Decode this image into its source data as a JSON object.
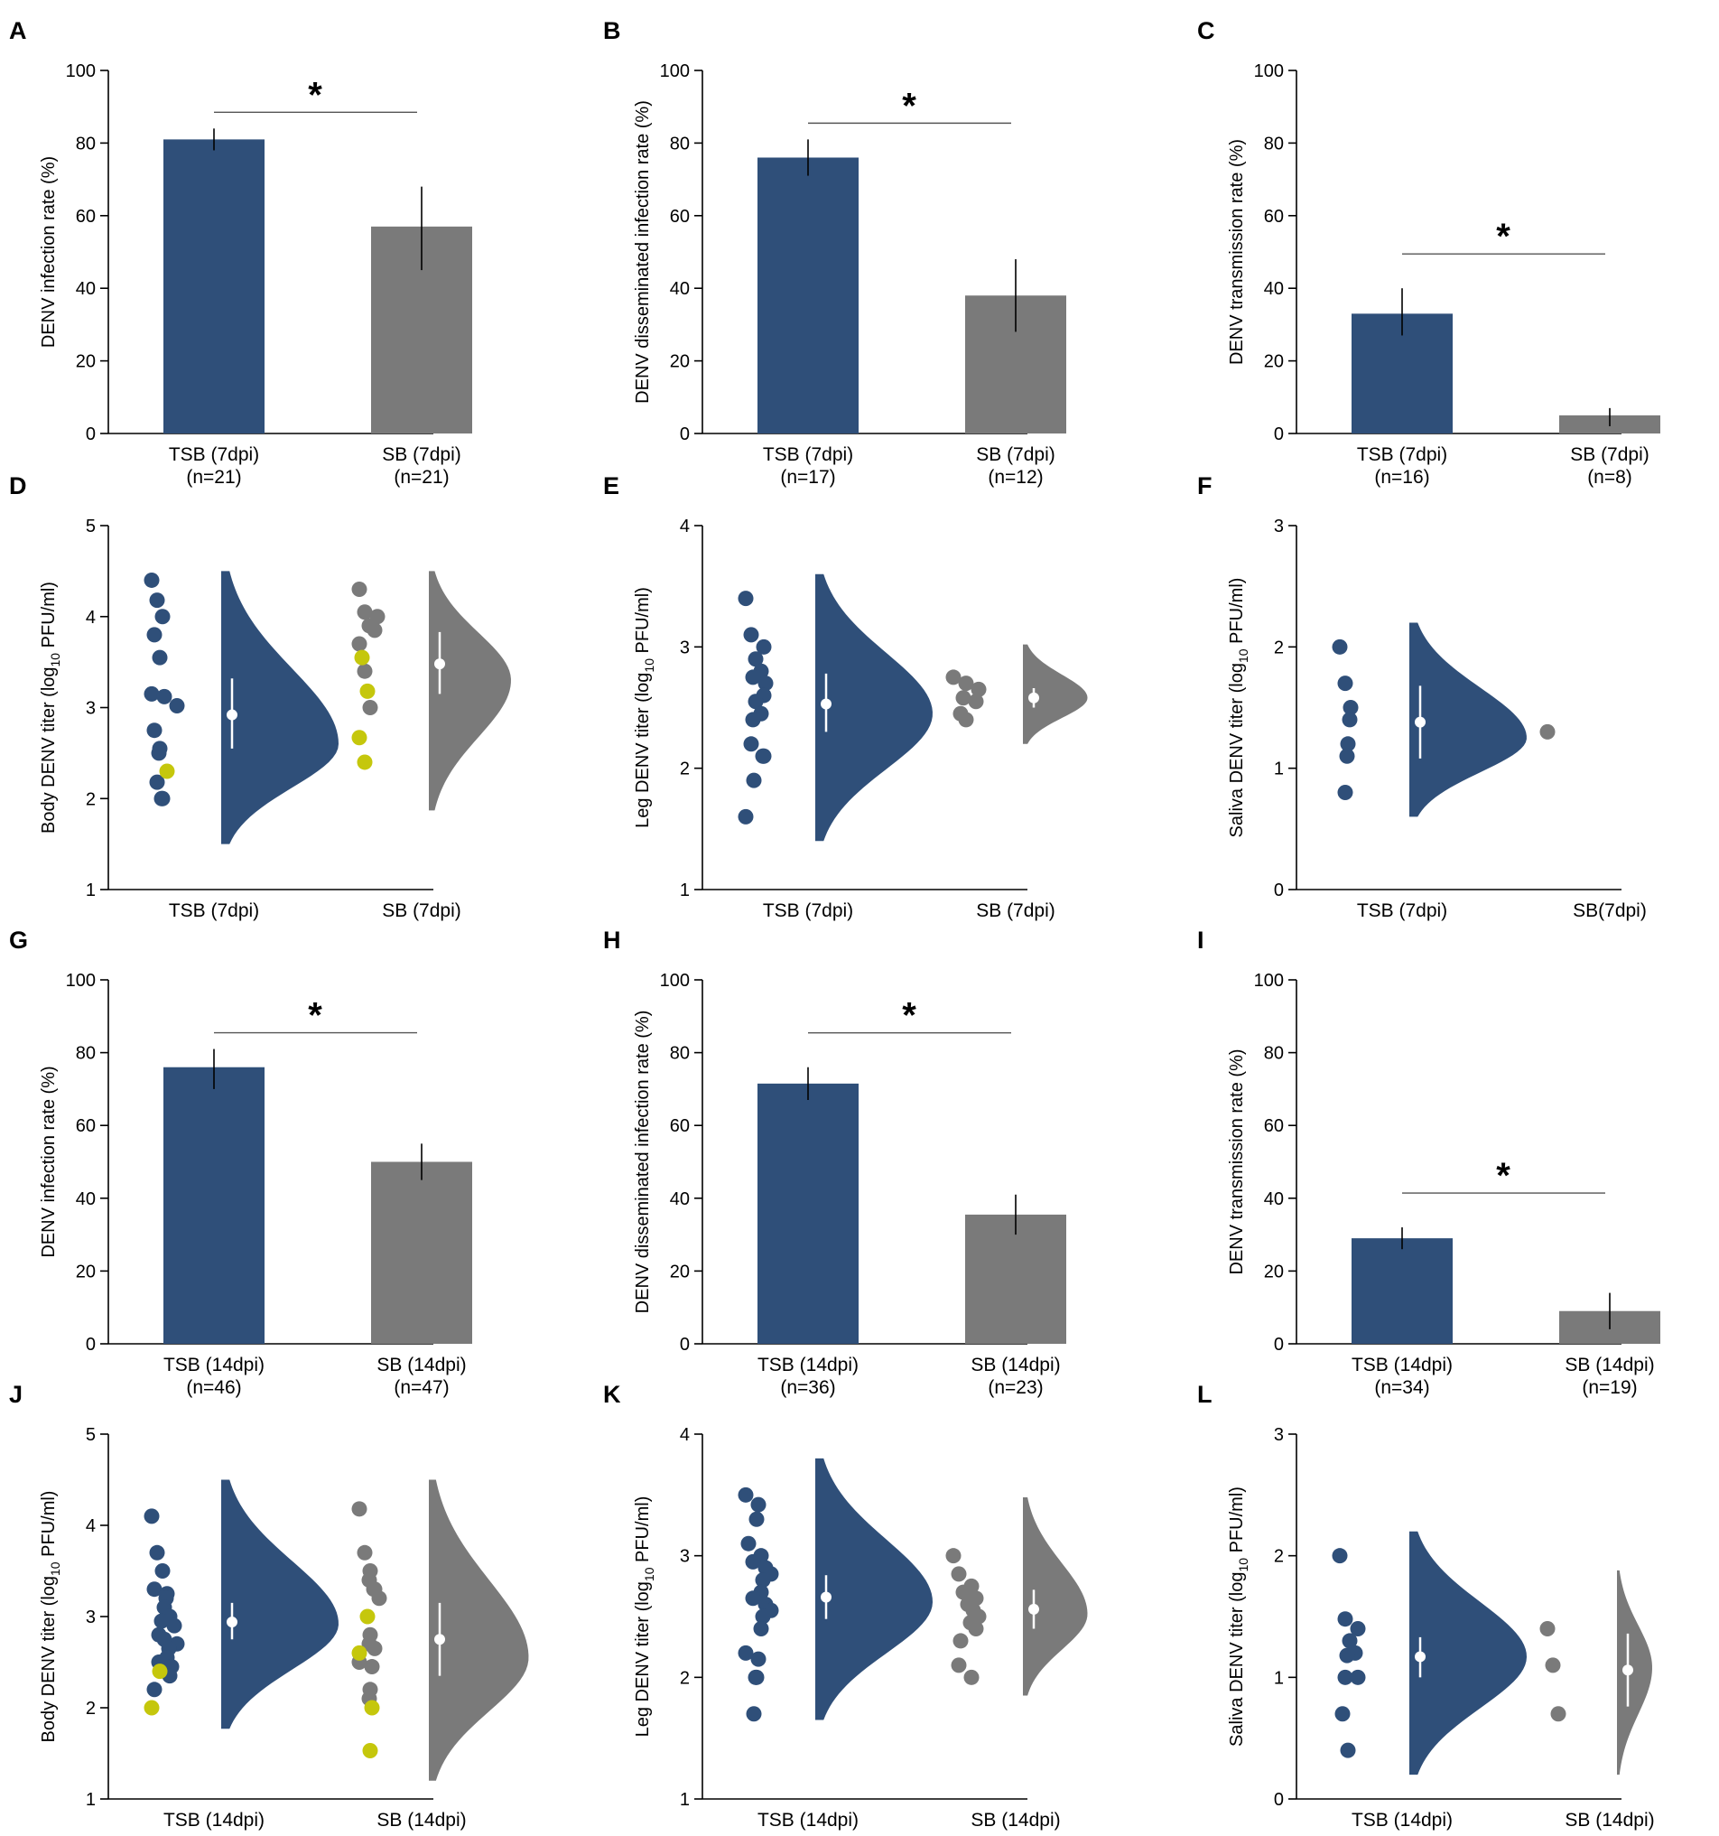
{
  "colors": {
    "tsb": "#2f4f79",
    "sb": "#7a7a7a",
    "yellow": "#c5c70c",
    "axis": "#000000",
    "median": "#ffffff"
  },
  "chart_data": [
    {
      "panel": "A",
      "type": "bar",
      "ylabel": "DENV infection rate (%)",
      "ylim": [
        0,
        100
      ],
      "yticks": [
        0,
        20,
        40,
        60,
        80,
        100
      ],
      "categories": [
        "TSB (7dpi)",
        "SB (7dpi)"
      ],
      "subcategories": [
        "(n=21)",
        "(n=21)"
      ],
      "values": [
        81,
        57
      ],
      "err_low": [
        78,
        45
      ],
      "err_high": [
        84,
        68
      ],
      "significance": "*"
    },
    {
      "panel": "B",
      "type": "bar",
      "ylabel": "DENV disseminated infection rate (%)",
      "ylim": [
        0,
        100
      ],
      "yticks": [
        0,
        20,
        40,
        60,
        80,
        100
      ],
      "categories": [
        "TSB (7dpi)",
        "SB (7dpi)"
      ],
      "subcategories": [
        "(n=17)",
        "(n=12)"
      ],
      "values": [
        76,
        38
      ],
      "err_low": [
        71,
        28
      ],
      "err_high": [
        81,
        48
      ],
      "significance": "*"
    },
    {
      "panel": "C",
      "type": "bar",
      "ylabel": "DENV transmission rate (%)",
      "ylim": [
        0,
        100
      ],
      "yticks": [
        0,
        20,
        40,
        60,
        80,
        100
      ],
      "categories": [
        "TSB (7dpi)",
        "SB (7dpi)"
      ],
      "subcategories": [
        "(n=16)",
        "(n=8)"
      ],
      "values": [
        33,
        5
      ],
      "err_low": [
        27,
        2
      ],
      "err_high": [
        40,
        7
      ],
      "significance": "*"
    },
    {
      "panel": "D",
      "type": "scatter",
      "ylabel": "Body DENV titer (log10 PFU/ml)",
      "ylim": [
        1,
        5
      ],
      "yticks": [
        1,
        2,
        3,
        4,
        5
      ],
      "categories": [
        "TSB (7dpi)",
        "SB (7dpi)"
      ],
      "groups": [
        {
          "points": [
            4.4,
            4.18,
            4.0,
            3.8,
            3.55,
            3.15,
            3.12,
            3.02,
            2.75,
            2.55,
            2.5,
            2.18,
            2.0,
            2.0
          ],
          "highlight": [
            2.3
          ],
          "median": 2.92,
          "q1": 2.55,
          "q3": 3.32,
          "vmin": 1.5,
          "vmax": 4.5,
          "vmode": 2.6,
          "vwidth": 1
        },
        {
          "points": [
            4.3,
            4.05,
            4.0,
            3.9,
            3.85,
            3.7,
            3.4,
            3.0
          ],
          "highlight": [
            3.55,
            3.18,
            2.67,
            2.4
          ],
          "median": 3.48,
          "q1": 3.15,
          "q3": 3.83,
          "vmin": 1.87,
          "vmax": 4.5,
          "vmode": 3.3,
          "vwidth": 0.7
        }
      ]
    },
    {
      "panel": "E",
      "type": "scatter",
      "ylabel": "Leg DENV titer (log10 PFU/ml)",
      "ylim": [
        1,
        4
      ],
      "yticks": [
        1,
        2,
        3,
        4
      ],
      "categories": [
        "TSB (7dpi)",
        "SB (7dpi)"
      ],
      "groups": [
        {
          "points": [
            3.4,
            3.1,
            3.0,
            2.9,
            2.8,
            2.75,
            2.7,
            2.6,
            2.55,
            2.45,
            2.4,
            2.2,
            2.1,
            2.1,
            1.9,
            1.6
          ],
          "highlight": [],
          "median": 2.53,
          "q1": 2.3,
          "q3": 2.78,
          "vmin": 1.4,
          "vmax": 3.6,
          "vmode": 2.45,
          "vwidth": 1
        },
        {
          "points": [
            2.75,
            2.7,
            2.65,
            2.58,
            2.55,
            2.45,
            2.4
          ],
          "highlight": [],
          "median": 2.58,
          "q1": 2.5,
          "q3": 2.66,
          "vmin": 2.2,
          "vmax": 3.02,
          "vmode": 2.58,
          "vwidth": 0.55
        }
      ]
    },
    {
      "panel": "F",
      "type": "scatter",
      "ylabel": "Saliva DENV titer (log10 PFU/ml)",
      "ylim": [
        0,
        3
      ],
      "yticks": [
        0,
        1,
        2,
        3
      ],
      "categories": [
        "TSB (7dpi)",
        "SB(7dpi)"
      ],
      "groups": [
        {
          "points": [
            2.0,
            1.7,
            1.5,
            1.4,
            1.2,
            1.1,
            0.8
          ],
          "highlight": [],
          "median": 1.38,
          "q1": 1.08,
          "q3": 1.68,
          "vmin": 0.6,
          "vmax": 2.2,
          "vmode": 1.25,
          "vwidth": 1
        },
        {
          "points": [
            1.3
          ],
          "highlight": [],
          "median": null,
          "q1": null,
          "q3": null,
          "vmin": null,
          "vmax": null,
          "vmode": null,
          "vwidth": 0
        }
      ]
    },
    {
      "panel": "G",
      "type": "bar",
      "ylabel": "DENV infection rate (%)",
      "ylim": [
        0,
        100
      ],
      "yticks": [
        0,
        20,
        40,
        60,
        80,
        100
      ],
      "categories": [
        "TSB (14dpi)",
        "SB (14dpi)"
      ],
      "subcategories": [
        "(n=46)",
        "(n=47)"
      ],
      "values": [
        76,
        50
      ],
      "err_low": [
        70,
        45
      ],
      "err_high": [
        81,
        55
      ],
      "significance": "*"
    },
    {
      "panel": "H",
      "type": "bar",
      "ylabel": "DENV disseminated infection rate (%)",
      "ylim": [
        0,
        100
      ],
      "yticks": [
        0,
        20,
        40,
        60,
        80,
        100
      ],
      "categories": [
        "TSB (14dpi)",
        "SB (14dpi)"
      ],
      "subcategories": [
        "(n=36)",
        "(n=23)"
      ],
      "values": [
        71.5,
        35.5
      ],
      "err_low": [
        67,
        30
      ],
      "err_high": [
        76,
        41
      ],
      "significance": "*"
    },
    {
      "panel": "I",
      "type": "bar",
      "ylabel": "DENV transmission rate (%)",
      "ylim": [
        0,
        100
      ],
      "yticks": [
        0,
        20,
        40,
        60,
        80,
        100
      ],
      "categories": [
        "TSB (14dpi)",
        "SB (14dpi)"
      ],
      "subcategories": [
        "(n=34)",
        "(n=19)"
      ],
      "values": [
        29,
        9
      ],
      "err_low": [
        26,
        4
      ],
      "err_high": [
        32,
        14
      ],
      "significance": "*"
    },
    {
      "panel": "J",
      "type": "scatter",
      "ylabel": "Body DENV titer (log10 PFU/ml)",
      "ylim": [
        1,
        5
      ],
      "yticks": [
        1,
        2,
        3,
        4,
        5
      ],
      "categories": [
        "TSB (14dpi)",
        "SB (14dpi)"
      ],
      "groups": [
        {
          "points": [
            4.1,
            3.7,
            3.5,
            3.3,
            3.25,
            3.2,
            3.1,
            3.0,
            2.95,
            2.9,
            2.8,
            2.75,
            2.7,
            2.65,
            2.55,
            2.5,
            2.45,
            2.35,
            2.2
          ],
          "highlight": [
            2.4,
            2.0
          ],
          "median": 2.94,
          "q1": 2.75,
          "q3": 3.15,
          "vmin": 1.77,
          "vmax": 4.5,
          "vmode": 2.92,
          "vwidth": 1
        },
        {
          "points": [
            4.18,
            3.7,
            3.5,
            3.4,
            3.3,
            3.3,
            3.2,
            2.8,
            2.7,
            2.65,
            2.5,
            2.45,
            2.2,
            2.1
          ],
          "highlight": [
            3.0,
            2.6,
            2.0,
            1.53
          ],
          "median": 2.75,
          "q1": 2.35,
          "q3": 3.15,
          "vmin": 1.2,
          "vmax": 4.5,
          "vmode": 2.55,
          "vwidth": 0.85
        }
      ]
    },
    {
      "panel": "K",
      "type": "scatter",
      "ylabel": "Leg DENV titer (log10 PFU/ml)",
      "ylim": [
        1,
        4
      ],
      "yticks": [
        1,
        2,
        3,
        4
      ],
      "categories": [
        "TSB (14dpi)",
        "SB (14dpi)"
      ],
      "groups": [
        {
          "points": [
            3.5,
            3.42,
            3.3,
            3.1,
            3.0,
            2.95,
            2.9,
            2.85,
            2.8,
            2.7,
            2.65,
            2.6,
            2.55,
            2.5,
            2.4,
            2.2,
            2.15,
            2.0,
            2.0,
            1.7
          ],
          "highlight": [],
          "median": 2.66,
          "q1": 2.48,
          "q3": 2.84,
          "vmin": 1.65,
          "vmax": 3.8,
          "vmode": 2.62,
          "vwidth": 1
        },
        {
          "points": [
            3.0,
            2.85,
            2.75,
            2.7,
            2.65,
            2.6,
            2.55,
            2.5,
            2.45,
            2.4,
            2.3,
            2.1,
            2.0
          ],
          "highlight": [],
          "median": 2.56,
          "q1": 2.4,
          "q3": 2.72,
          "vmin": 1.85,
          "vmax": 3.48,
          "vmode": 2.52,
          "vwidth": 0.55
        }
      ]
    },
    {
      "panel": "L",
      "type": "scatter",
      "ylabel": "Saliva DENV titer (log10 PFU/ml)",
      "ylim": [
        0,
        3
      ],
      "yticks": [
        0,
        1,
        2,
        3
      ],
      "categories": [
        "TSB (14dpi)",
        "SB (14dpi)"
      ],
      "groups": [
        {
          "points": [
            2.0,
            1.48,
            1.4,
            1.3,
            1.2,
            1.18,
            1.0,
            1.0,
            0.7,
            0.4
          ],
          "highlight": [],
          "median": 1.17,
          "q1": 1.0,
          "q3": 1.33,
          "vmin": 0.2,
          "vmax": 2.2,
          "vmode": 1.17,
          "vwidth": 1
        },
        {
          "points": [
            1.4,
            1.1,
            0.7
          ],
          "highlight": [],
          "median": 1.06,
          "q1": 0.76,
          "q3": 1.36,
          "vmin": 0.2,
          "vmax": 1.88,
          "vmode": 1.08,
          "vwidth": 0.3
        }
      ]
    }
  ]
}
